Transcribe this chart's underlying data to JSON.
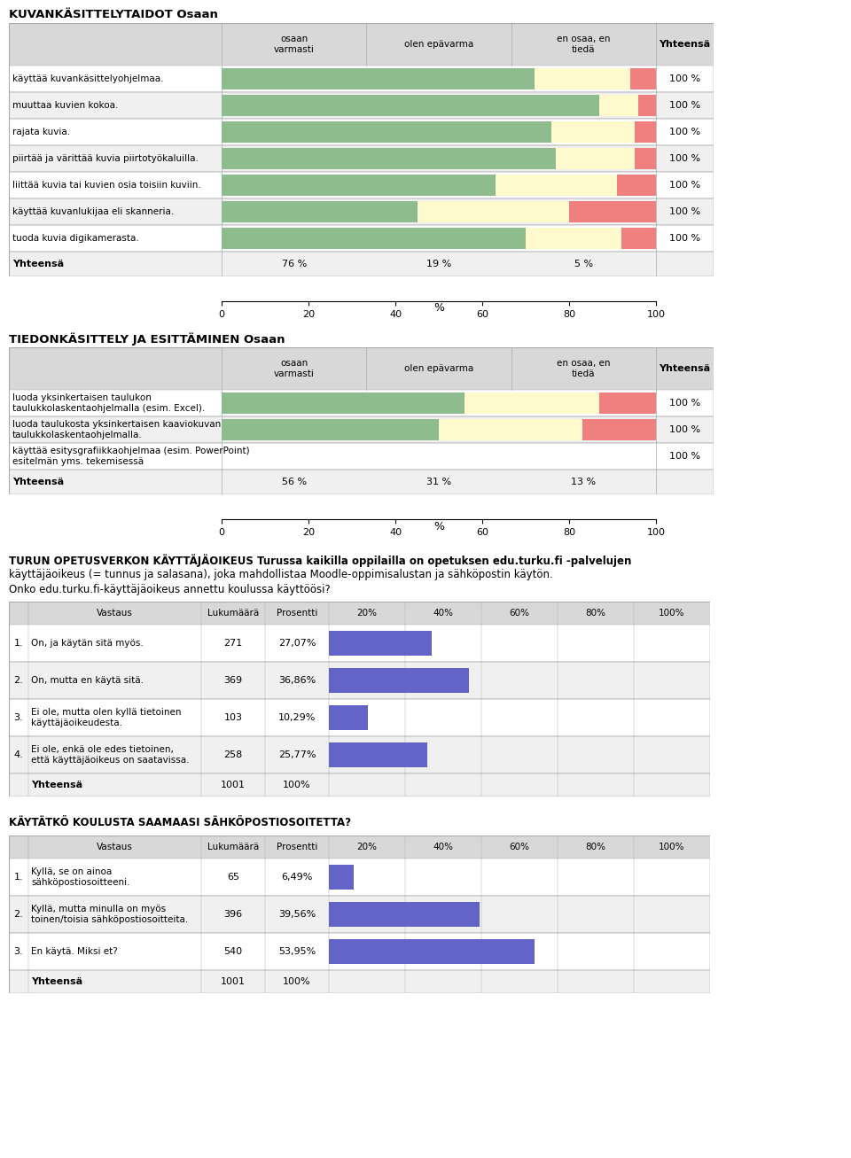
{
  "section1_title": "KUVANKÄSITTELYTAIDOT Osaan",
  "section1_rows": [
    {
      "label": "käyttää kuvankäsittelyohjelmaa.",
      "green": 72,
      "yellow": 22,
      "red": 6
    },
    {
      "label": "muuttaa kuvien kokoa.",
      "green": 87,
      "yellow": 9,
      "red": 4
    },
    {
      "label": "rajata kuvia.",
      "green": 76,
      "yellow": 19,
      "red": 5
    },
    {
      "label": "piirtää ja värittää kuvia piirtotyökaluilla.",
      "green": 77,
      "yellow": 18,
      "red": 5
    },
    {
      "label": "liittää kuvia tai kuvien osia toisiin kuviin.",
      "green": 63,
      "yellow": 28,
      "red": 9
    },
    {
      "label": "käyttää kuvanlukijaa eli skanneria.",
      "green": 45,
      "yellow": 35,
      "red": 20
    },
    {
      "label": "tuoda kuvia digikamerasta.",
      "green": 70,
      "yellow": 22,
      "red": 8
    }
  ],
  "section1_summary": [
    "76 %",
    "19 %",
    "5 %"
  ],
  "section2_title": "TIEDONKÄSITTELY JA ESITTÄMINEN Osaan",
  "section2_rows": [
    {
      "label": "luoda yksinkertaisen taulukon\ntaulukkolaskentaohjelmalla (esim. Excel).",
      "green": 56,
      "yellow": 31,
      "red": 13
    },
    {
      "label": "luoda taulukosta yksinkertaisen kaaviokuvan\ntaulukkolaskentaohjelmalla.",
      "green": 50,
      "yellow": 33,
      "red": 17
    },
    {
      "label": "käyttää esitysgrafiikkaohjelmaa (esim. PowerPoint)\nesitelmän yms. tekemisessä",
      "green": 0,
      "yellow": 0,
      "red": 0
    }
  ],
  "section2_summary": [
    "56 %",
    "31 %",
    "13 %"
  ],
  "section3_title_bold": "TURUN OPETUSVERKON KÄYTTÄJÄOIKEUS",
  "section3_title_normal": " Turussa kaikilla oppilailla on opetuksen edu.turku.fi -palvelujen",
  "section3_title_line2": "käyttäjäoikeus (= tunnus ja salasana), joka mahdollistaa Moodle-oppimisalustan ja sähköpostin käytön.",
  "section3_title_line3": "Onko edu.turku.fi-käyttäjäoikeus annettu koulussa käyttöösi?",
  "section3_rows": [
    {
      "num": "1.",
      "label": "On, ja käytän sitä myös.",
      "count": "271",
      "pct": "27,07%",
      "value": 27.07
    },
    {
      "num": "2.",
      "label": "On, mutta en käytä sitä.",
      "count": "369",
      "pct": "36,86%",
      "value": 36.86
    },
    {
      "num": "3.",
      "label": "Ei ole, mutta olen kyllä tietoinen\nkäyttäjäoikeudesta.",
      "count": "103",
      "pct": "10,29%",
      "value": 10.29
    },
    {
      "num": "4.",
      "label": "Ei ole, enkä ole edes tietoinen,\nettä käyttäjäoikeus on saatavissa.",
      "count": "258",
      "pct": "25,77%",
      "value": 25.77
    }
  ],
  "section4_title": "KÄYTÄTKÖ KOULUSTA SAAMAASI SÄHKÖPOSTIOSOITETTA?",
  "section4_rows": [
    {
      "num": "1.",
      "label": "Kyllä, se on ainoa\nsähköpostiosoitteeni.",
      "count": "65",
      "pct": "6,49%",
      "value": 6.49
    },
    {
      "num": "2.",
      "label": "Kyllä, mutta minulla on myös\ntoinen/toisia sähköpostiosoitteita.",
      "count": "396",
      "pct": "39,56%",
      "value": 39.56
    },
    {
      "num": "3.",
      "label": "En käytä. Miksi et?",
      "count": "540",
      "pct": "53,95%",
      "value": 53.95
    }
  ],
  "col_header": [
    "osaan\nvarmasti",
    "olen epävarma",
    "en osaa, en\ntiedä",
    "Yhteensä"
  ],
  "bar_header": [
    "Vastaus",
    "Lukumäärä",
    "Prosentti",
    "20%",
    "40%",
    "60%",
    "80%",
    "100%"
  ],
  "colors": {
    "green": "#8fbc8f",
    "yellow": "#fffacd",
    "red": "#f08080",
    "blue": "#6464c8",
    "header_bg": "#d8d8d8",
    "row_bg_alt": "#f0f0f0",
    "row_bg": "#ffffff",
    "border": "#aaaaaa"
  }
}
